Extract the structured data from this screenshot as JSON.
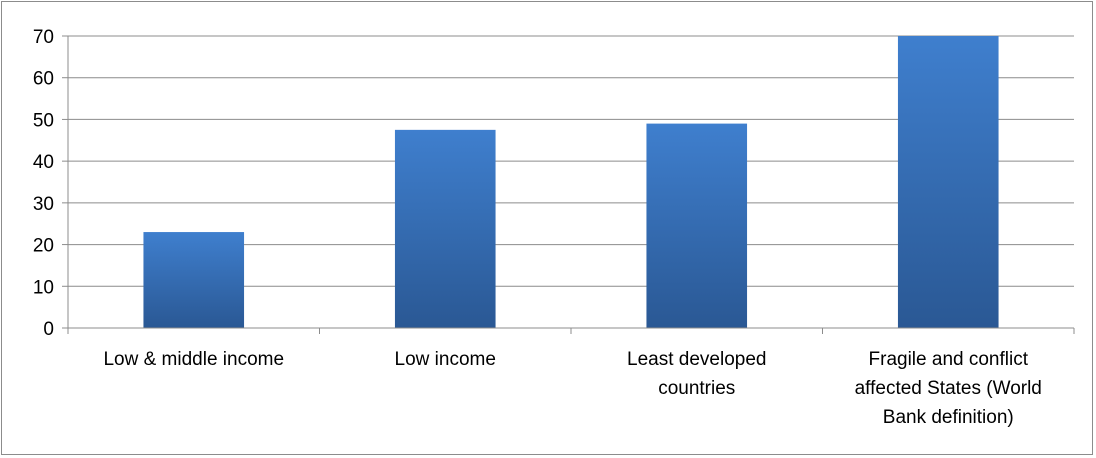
{
  "chart_data": {
    "type": "bar",
    "categories": [
      [
        "Low & middle income"
      ],
      [
        "Low income"
      ],
      [
        "Least developed",
        "countries"
      ],
      [
        "Fragile and conflict",
        "affected States (World",
        "Bank definition)"
      ]
    ],
    "values": [
      23,
      47.5,
      49,
      70
    ],
    "title": "",
    "xlabel": "",
    "ylabel": "",
    "ylim": [
      0,
      70
    ],
    "yticks": [
      0,
      10,
      20,
      30,
      40,
      50,
      60,
      70
    ],
    "grid": true,
    "legend": "none",
    "colors": {
      "bar_top": "#3f7fce",
      "bar_bottom": "#2a5894",
      "grid": "#8c8c8c",
      "axis": "#8c8c8c"
    }
  }
}
